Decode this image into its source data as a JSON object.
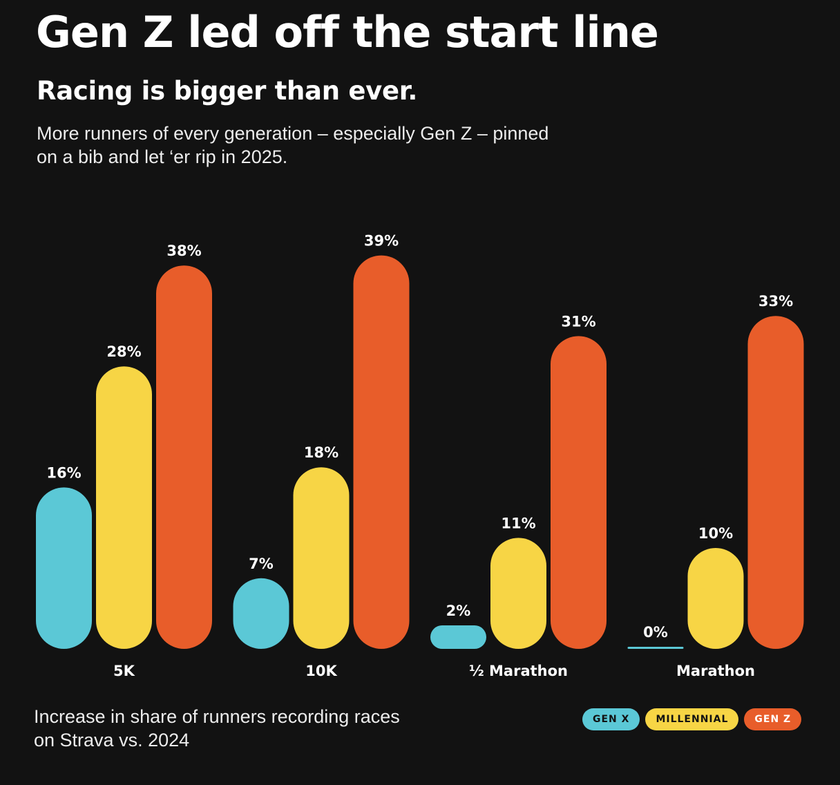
{
  "header": {
    "title": "Gen Z led off the start line",
    "subtitle": "Racing is bigger than ever.",
    "description": "More runners of every generation – especially Gen Z – pinned on a bib and let ‘er rip in 2025."
  },
  "footnote": "Increase in share of runners recording races on Strava vs. 2024",
  "chart_data": {
    "type": "bar",
    "title": "Gen Z led off the start line",
    "subtitle": "Racing is bigger than ever.",
    "xlabel": "",
    "ylabel": "Increase in share of runners recording races on Strava vs. 2024",
    "categories": [
      "5K",
      "10K",
      "½ Marathon",
      "Marathon"
    ],
    "series": [
      {
        "name": "GEN X",
        "color": "#5bc8d6",
        "values": [
          16,
          7,
          2,
          0
        ],
        "labels": [
          "16%",
          "7%",
          "2%",
          "0%"
        ]
      },
      {
        "name": "MILLENNIAL",
        "color": "#f7d545",
        "values": [
          28,
          18,
          11,
          10
        ],
        "labels": [
          "28%",
          "18%",
          "11%",
          "10%"
        ]
      },
      {
        "name": "GEN Z",
        "color": "#e85d2a",
        "values": [
          38,
          39,
          31,
          33
        ],
        "labels": [
          "38%",
          "39%",
          "31%",
          "33%"
        ]
      }
    ],
    "ylim": [
      0,
      39
    ],
    "grid": false,
    "legend": "bottom-right"
  }
}
